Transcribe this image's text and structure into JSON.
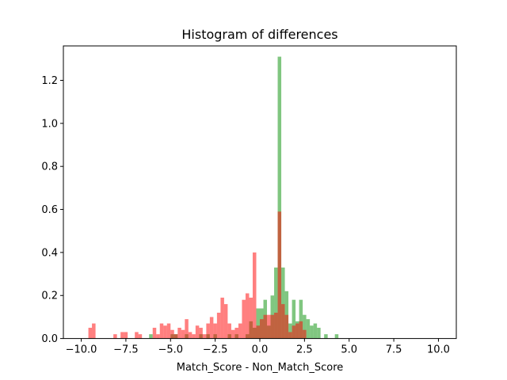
{
  "chart_data": {
    "type": "bar",
    "title": "Histogram of differences",
    "xlabel": "Match_Score - Non_Match_Score",
    "ylabel": "",
    "xlim": [
      -11,
      11
    ],
    "ylim": [
      0,
      1.36
    ],
    "xticks": [
      -10.0,
      -7.5,
      -5.0,
      -2.5,
      0.0,
      2.5,
      5.0,
      7.5,
      10.0
    ],
    "xtick_labels": [
      "−10.0",
      "−7.5",
      "−5.0",
      "−2.5",
      "0.0",
      "2.5",
      "5.0",
      "7.5",
      "10.0"
    ],
    "yticks": [
      0.0,
      0.2,
      0.4,
      0.6,
      0.8,
      1.0,
      1.2
    ],
    "ytick_labels": [
      "0.0",
      "0.2",
      "0.4",
      "0.6",
      "0.8",
      "1.0",
      "1.2"
    ],
    "grid": false,
    "legend": "none",
    "bin_width": 0.2,
    "series": [
      {
        "color": "#2ca02c",
        "opacity": 0.6,
        "bins": [
          [
            -6.2,
            0.02
          ],
          [
            -5.0,
            0.02
          ],
          [
            -4.8,
            0.02
          ],
          [
            -4.2,
            0.02
          ],
          [
            -3.4,
            0.02
          ],
          [
            -3.0,
            0.02
          ],
          [
            -2.6,
            0.02
          ],
          [
            -1.8,
            0.02
          ],
          [
            -1.4,
            0.02
          ],
          [
            -0.8,
            0.02
          ],
          [
            -0.6,
            0.08
          ],
          [
            -0.4,
            0.05
          ],
          [
            -0.2,
            0.14
          ],
          [
            0.0,
            0.14
          ],
          [
            0.2,
            0.18
          ],
          [
            0.4,
            0.06
          ],
          [
            0.6,
            0.2
          ],
          [
            0.8,
            0.33
          ],
          [
            1.0,
            1.31
          ],
          [
            1.2,
            0.33
          ],
          [
            1.4,
            0.22
          ],
          [
            1.6,
            0.07
          ],
          [
            1.8,
            0.18
          ],
          [
            2.0,
            0.08
          ],
          [
            2.2,
            0.18
          ],
          [
            2.4,
            0.11
          ],
          [
            2.6,
            0.09
          ],
          [
            2.8,
            0.06
          ],
          [
            3.0,
            0.07
          ],
          [
            3.2,
            0.05
          ],
          [
            3.6,
            0.02
          ],
          [
            4.2,
            0.02
          ]
        ]
      },
      {
        "color": "#ff0000",
        "opacity": 0.5,
        "bins": [
          [
            -9.6,
            0.05
          ],
          [
            -9.4,
            0.07
          ],
          [
            -8.2,
            0.02
          ],
          [
            -7.8,
            0.03
          ],
          [
            -7.6,
            0.03
          ],
          [
            -7.0,
            0.03
          ],
          [
            -6.8,
            0.02
          ],
          [
            -6.0,
            0.05
          ],
          [
            -5.8,
            0.02
          ],
          [
            -5.6,
            0.07
          ],
          [
            -5.4,
            0.06
          ],
          [
            -5.2,
            0.07
          ],
          [
            -5.0,
            0.04
          ],
          [
            -4.8,
            0.02
          ],
          [
            -4.6,
            0.05
          ],
          [
            -4.4,
            0.04
          ],
          [
            -4.2,
            0.09
          ],
          [
            -4.0,
            0.03
          ],
          [
            -3.8,
            0.02
          ],
          [
            -3.6,
            0.06
          ],
          [
            -3.4,
            0.05
          ],
          [
            -3.2,
            0.02
          ],
          [
            -3.0,
            0.07
          ],
          [
            -2.8,
            0.1
          ],
          [
            -2.6,
            0.07
          ],
          [
            -2.4,
            0.12
          ],
          [
            -2.2,
            0.19
          ],
          [
            -2.0,
            0.16
          ],
          [
            -1.8,
            0.07
          ],
          [
            -1.6,
            0.04
          ],
          [
            -1.4,
            0.05
          ],
          [
            -1.2,
            0.07
          ],
          [
            -1.0,
            0.18
          ],
          [
            -0.8,
            0.21
          ],
          [
            -0.6,
            0.19
          ],
          [
            -0.4,
            0.4
          ],
          [
            -0.2,
            0.06
          ],
          [
            0.0,
            0.09
          ],
          [
            0.2,
            0.11
          ],
          [
            0.4,
            0.11
          ],
          [
            0.6,
            0.11
          ],
          [
            0.8,
            0.12
          ],
          [
            1.0,
            0.59
          ],
          [
            1.2,
            0.16
          ],
          [
            1.4,
            0.11
          ],
          [
            1.6,
            0.03
          ],
          [
            1.8,
            0.06
          ],
          [
            2.0,
            0.07
          ],
          [
            2.2,
            0.08
          ],
          [
            2.4,
            0.04
          ]
        ]
      }
    ]
  }
}
